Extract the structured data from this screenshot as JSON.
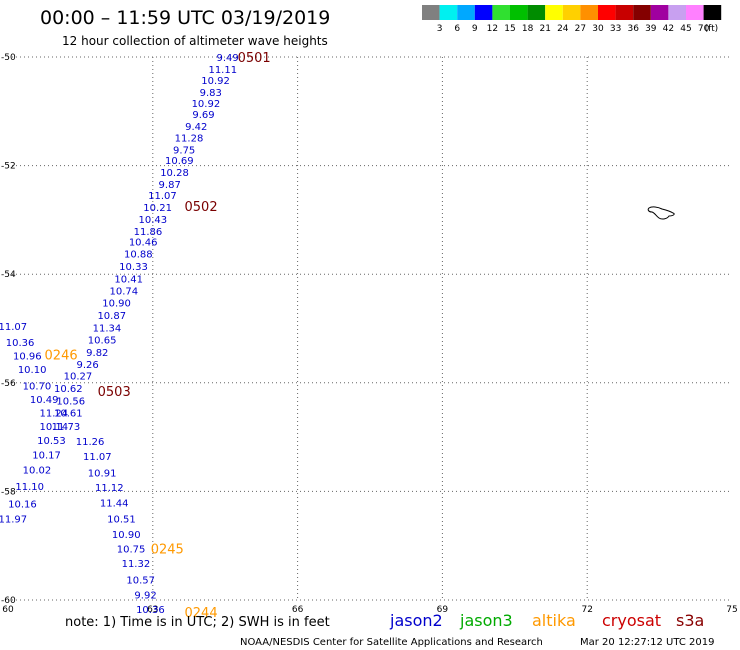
{
  "header": {
    "title": "00:00 – 11:59 UTC 03/19/2019",
    "subtitle": "12 hour collection of altimeter wave heights"
  },
  "colorbar": {
    "unit": "(ft)",
    "bins": [
      {
        "label": "3",
        "color": "#808080"
      },
      {
        "label": "6",
        "color": "#00f0f0"
      },
      {
        "label": "9",
        "color": "#00a8ff"
      },
      {
        "label": "12",
        "color": "#0000ff"
      },
      {
        "label": "15",
        "color": "#30e030"
      },
      {
        "label": "18",
        "color": "#00c000"
      },
      {
        "label": "21",
        "color": "#008c00"
      },
      {
        "label": "24",
        "color": "#ffff00"
      },
      {
        "label": "27",
        "color": "#ffd000"
      },
      {
        "label": "30",
        "color": "#ff9000"
      },
      {
        "label": "33",
        "color": "#ff0000"
      },
      {
        "label": "36",
        "color": "#c80000"
      },
      {
        "label": "39",
        "color": "#840000"
      },
      {
        "label": "42",
        "color": "#a000a0"
      },
      {
        "label": "45",
        "color": "#c8a0f0"
      },
      {
        "label": "70",
        "color": "#ff80ff"
      },
      {
        "label": "",
        "color": "#000000"
      }
    ]
  },
  "chart_data": {
    "type": "scatter",
    "xlim": [
      60,
      75
    ],
    "ylim": [
      -60,
      -50
    ],
    "x_ticks": [
      "60",
      "63",
      "66",
      "69",
      "72",
      "75"
    ],
    "y_ticks": [
      "-50",
      "-52",
      "-54",
      "-56",
      "-58",
      "-60"
    ],
    "grid": true,
    "series": [
      {
        "name": "jason2",
        "color": "#0000cc",
        "points": [
          {
            "x": 64.55,
            "y": -50.0,
            "v": "9.49"
          },
          {
            "x": 64.45,
            "y": -50.22,
            "v": "11.11"
          },
          {
            "x": 64.3,
            "y": -50.42,
            "v": "10.92"
          },
          {
            "x": 64.2,
            "y": -50.64,
            "v": "9.83"
          },
          {
            "x": 64.1,
            "y": -50.85,
            "v": "10.92"
          },
          {
            "x": 64.05,
            "y": -51.05,
            "v": "9.69"
          },
          {
            "x": 63.9,
            "y": -51.27,
            "v": "9.42"
          },
          {
            "x": 63.75,
            "y": -51.48,
            "v": "11.28"
          },
          {
            "x": 63.65,
            "y": -51.7,
            "v": "9.75"
          },
          {
            "x": 63.55,
            "y": -51.9,
            "v": "10.69"
          },
          {
            "x": 63.45,
            "y": -52.12,
            "v": "10.28"
          },
          {
            "x": 63.35,
            "y": -52.34,
            "v": "9.87"
          },
          {
            "x": 63.2,
            "y": -52.54,
            "v": "11.07"
          },
          {
            "x": 63.1,
            "y": -52.76,
            "v": "10.21"
          },
          {
            "x": 63.0,
            "y": -52.98,
            "v": "10.43"
          },
          {
            "x": 62.9,
            "y": -53.2,
            "v": "11.86"
          },
          {
            "x": 62.8,
            "y": -53.4,
            "v": "10.46"
          },
          {
            "x": 62.7,
            "y": -53.62,
            "v": "10.88"
          },
          {
            "x": 62.6,
            "y": -53.85,
            "v": "10.33"
          },
          {
            "x": 62.5,
            "y": -54.08,
            "v": "10.41"
          },
          {
            "x": 62.4,
            "y": -54.3,
            "v": "10.74"
          },
          {
            "x": 62.25,
            "y": -54.52,
            "v": "10.90"
          },
          {
            "x": 62.15,
            "y": -54.75,
            "v": "10.87"
          },
          {
            "x": 62.05,
            "y": -54.98,
            "v": "11.34"
          },
          {
            "x": 61.95,
            "y": -55.2,
            "v": "10.65"
          },
          {
            "x": 61.85,
            "y": -55.43,
            "v": "9.82"
          },
          {
            "x": 61.65,
            "y": -55.65,
            "v": "9.26"
          },
          {
            "x": 61.45,
            "y": -55.87,
            "v": "10.27"
          },
          {
            "x": 61.25,
            "y": -56.1,
            "v": "10.62"
          },
          {
            "x": 61.3,
            "y": -56.33,
            "v": "10.56"
          },
          {
            "x": 61.25,
            "y": -56.55,
            "v": "10.61"
          },
          {
            "x": 61.2,
            "y": -56.8,
            "v": "11.73"
          },
          {
            "x": 61.7,
            "y": -57.07,
            "v": "11.26"
          },
          {
            "x": 61.85,
            "y": -57.35,
            "v": "11.07"
          },
          {
            "x": 61.95,
            "y": -57.65,
            "v": "10.91"
          },
          {
            "x": 62.1,
            "y": -57.92,
            "v": "11.12"
          },
          {
            "x": 62.2,
            "y": -58.2,
            "v": "11.44"
          },
          {
            "x": 62.35,
            "y": -58.5,
            "v": "10.51"
          },
          {
            "x": 62.45,
            "y": -58.78,
            "v": "10.90"
          },
          {
            "x": 62.55,
            "y": -59.05,
            "v": "10.75"
          },
          {
            "x": 62.65,
            "y": -59.32,
            "v": "11.32"
          },
          {
            "x": 62.75,
            "y": -59.62,
            "v": "10.57"
          },
          {
            "x": 62.85,
            "y": -59.9,
            "v": "9.92"
          },
          {
            "x": 62.95,
            "y": -60.17,
            "v": "10.36"
          },
          {
            "x": 60.1,
            "y": -54.95,
            "v": "11.07"
          },
          {
            "x": 60.25,
            "y": -55.25,
            "v": "10.36"
          },
          {
            "x": 60.4,
            "y": -55.5,
            "v": "10.96"
          },
          {
            "x": 60.5,
            "y": -55.75,
            "v": "10.10"
          },
          {
            "x": 60.6,
            "y": -56.05,
            "v": "10.70"
          },
          {
            "x": 60.75,
            "y": -56.3,
            "v": "10.49"
          },
          {
            "x": 60.95,
            "y": -56.55,
            "v": "11.24"
          },
          {
            "x": 60.95,
            "y": -56.8,
            "v": "10.14"
          },
          {
            "x": 60.9,
            "y": -57.05,
            "v": "10.53"
          },
          {
            "x": 60.8,
            "y": -57.32,
            "v": "10.17"
          },
          {
            "x": 60.6,
            "y": -57.6,
            "v": "10.02"
          },
          {
            "x": 60.45,
            "y": -57.9,
            "v": "11.10"
          },
          {
            "x": 60.3,
            "y": -58.22,
            "v": "10.16"
          },
          {
            "x": 60.1,
            "y": -58.5,
            "v": "11.97"
          }
        ]
      },
      {
        "name": "altika",
        "color": "#ff9900",
        "points": []
      },
      {
        "name": "cryosat",
        "color": "#cc0000",
        "points": []
      }
    ],
    "time_labels": [
      {
        "text": "0501",
        "x": 65.1,
        "y": -50.0,
        "color": "#7a0000"
      },
      {
        "text": "0502",
        "x": 64.0,
        "y": -52.74,
        "color": "#7a0000"
      },
      {
        "text": "0503",
        "x": 62.2,
        "y": -56.15,
        "color": "#7a0000"
      },
      {
        "text": "0246",
        "x": 61.1,
        "y": -55.48,
        "color": "#ff9900"
      },
      {
        "text": "0245",
        "x": 63.3,
        "y": -59.05,
        "color": "#ff9900"
      },
      {
        "text": "0244",
        "x": 64.0,
        "y": -60.22,
        "color": "#ff9900"
      }
    ]
  },
  "footer": {
    "note": "note: 1) Time is in UTC; 2) SWH is in feet",
    "legend": [
      {
        "name": "jason2",
        "color": "#0000cc"
      },
      {
        "name": "jason3",
        "color": "#00aa00"
      },
      {
        "name": "altika",
        "color": "#ff9900"
      },
      {
        "name": "cryosat",
        "color": "#cc0000"
      },
      {
        "name": "s3a",
        "color": "#880000"
      }
    ],
    "credit": "NOAA/NESDIS Center for Satellite Applications and Research",
    "timestamp": "Mar 20 12:27:12 UTC 2019"
  }
}
